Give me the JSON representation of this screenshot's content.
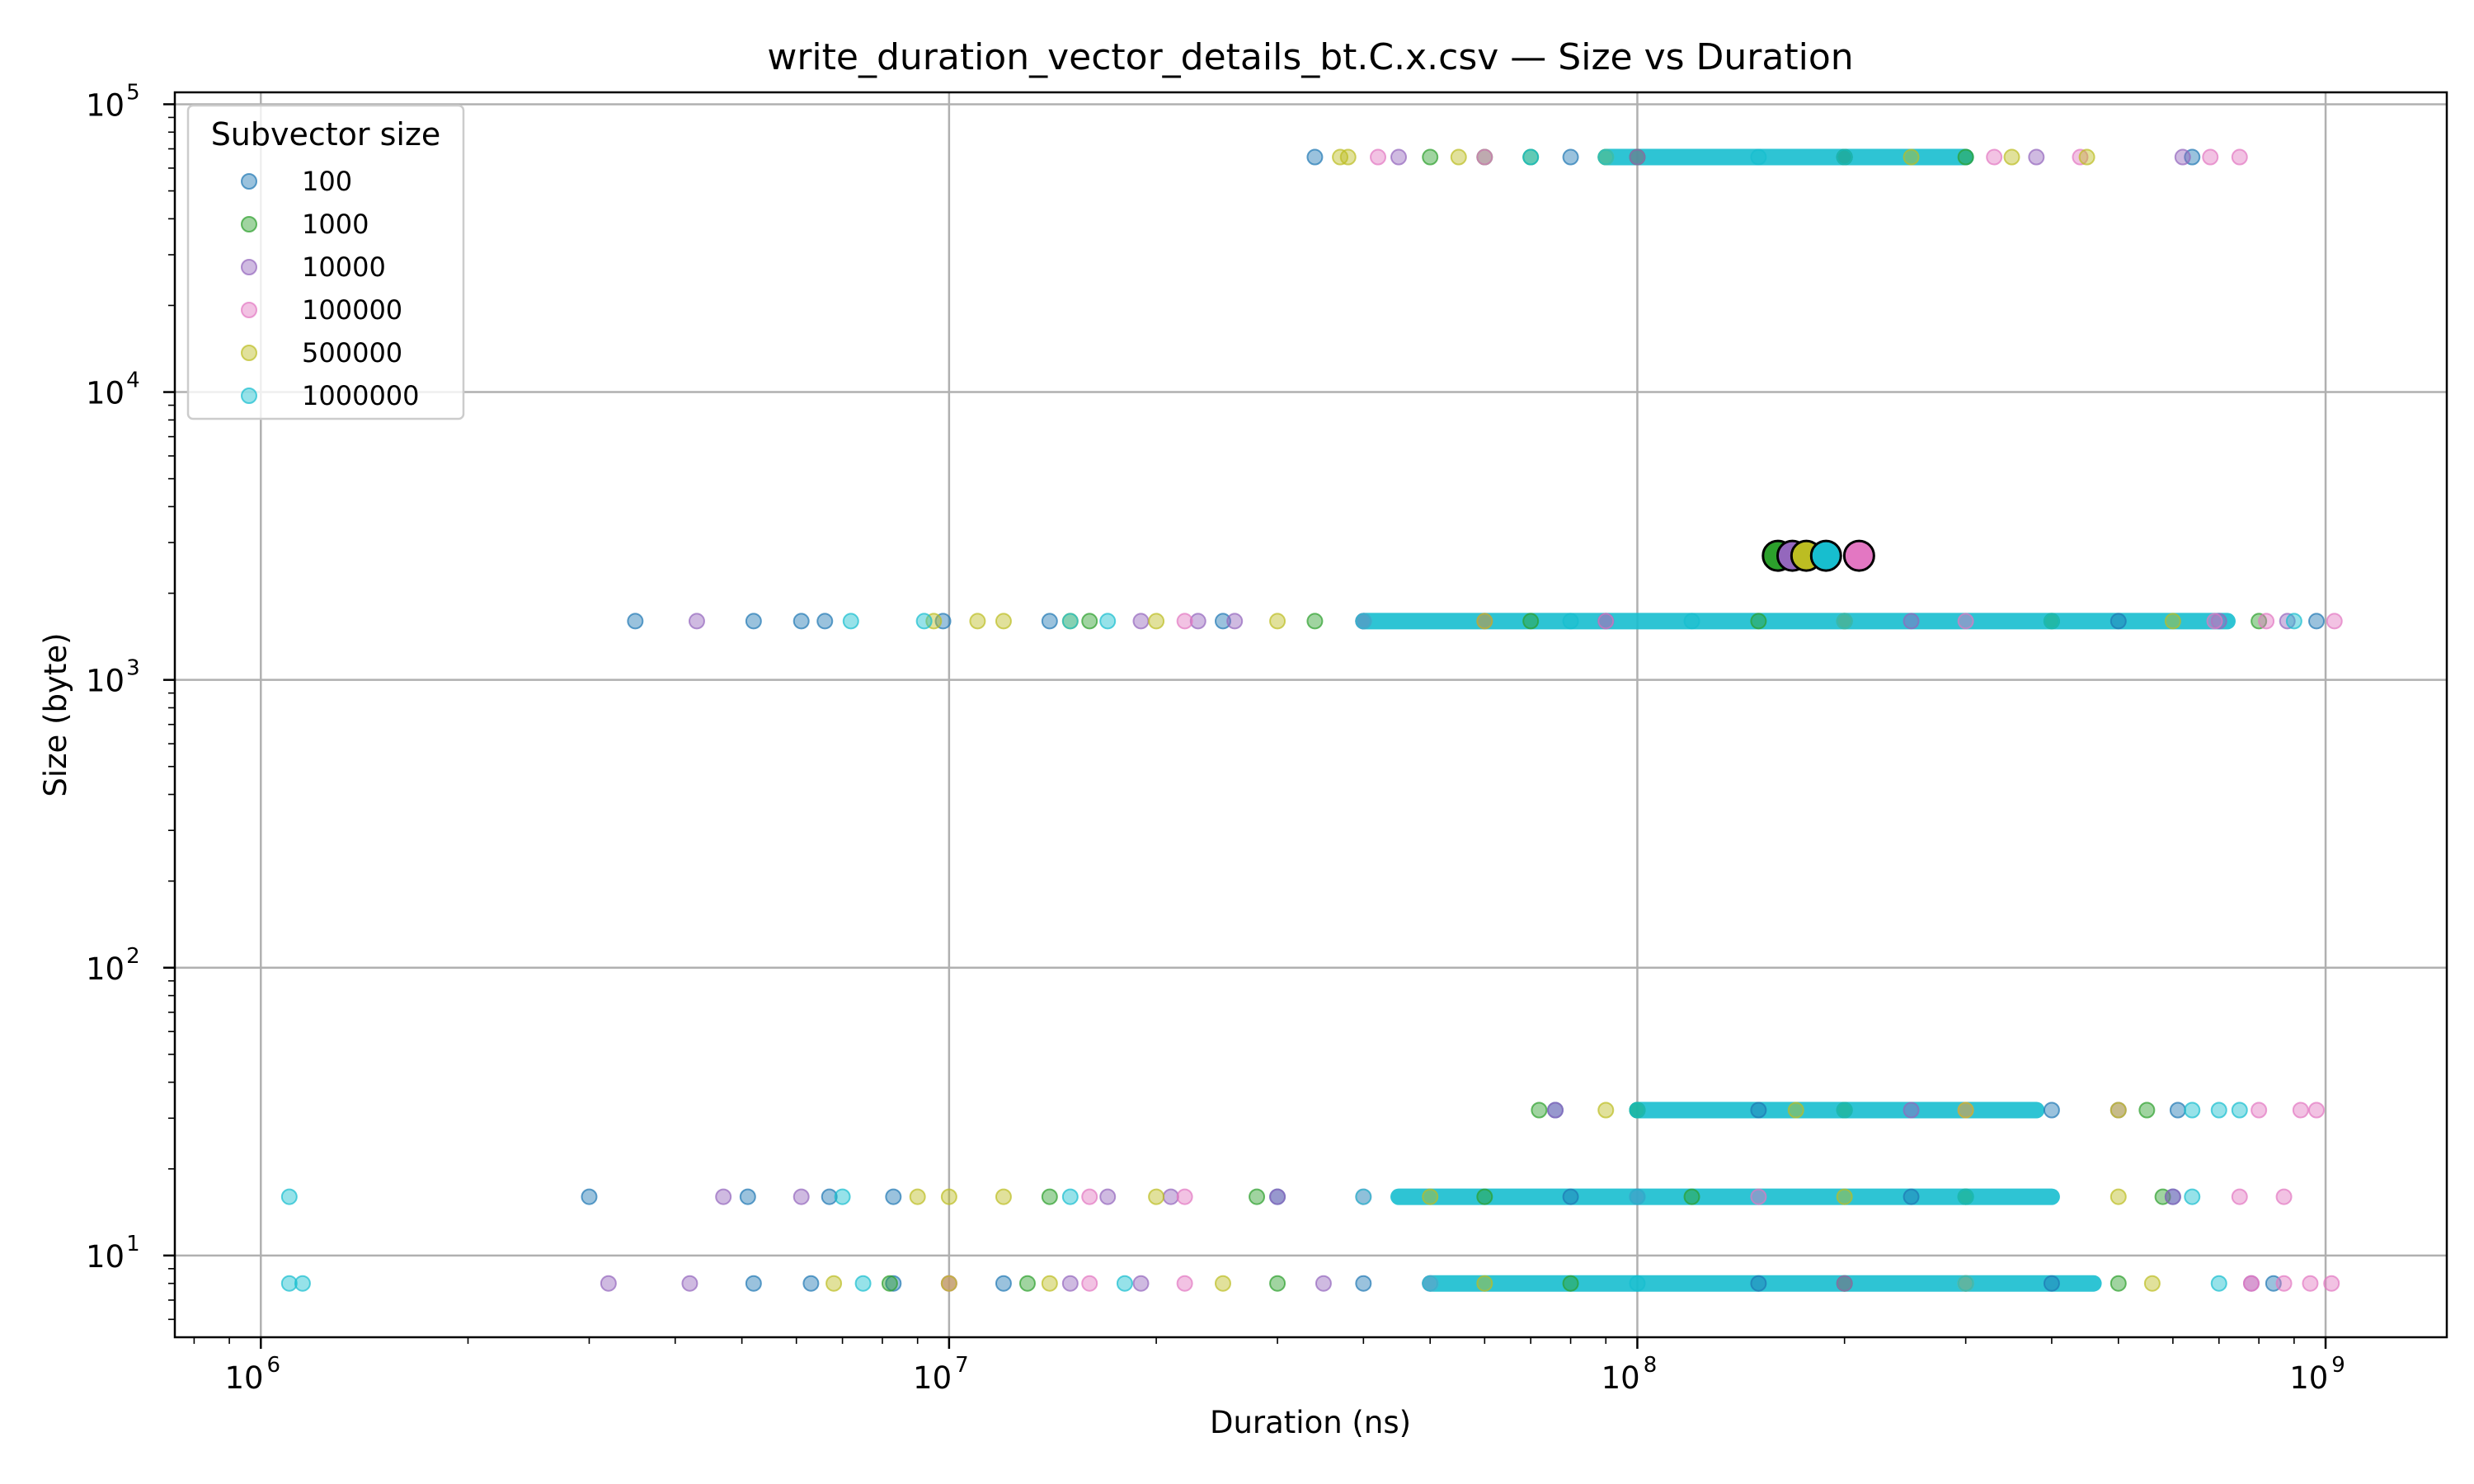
{
  "chart_data": {
    "type": "scatter",
    "title": "write_duration_vector_details_bt.C.x.csv — Size vs Duration",
    "xlabel": "Duration (ns)",
    "ylabel": "Size (byte)",
    "xscale": "log",
    "yscale": "log",
    "xlim": [
      750000,
      1500000000
    ],
    "ylim": [
      5.2,
      110000
    ],
    "grid": true,
    "x_ticks": [
      {
        "value": 1000000,
        "base": "10",
        "exp": "6"
      },
      {
        "value": 10000000,
        "base": "10",
        "exp": "7"
      },
      {
        "value": 100000000,
        "base": "10",
        "exp": "8"
      },
      {
        "value": 1000000000,
        "base": "10",
        "exp": "9"
      }
    ],
    "y_ticks": [
      {
        "value": 10,
        "base": "10",
        "exp": "1"
      },
      {
        "value": 100,
        "base": "10",
        "exp": "2"
      },
      {
        "value": 1000,
        "base": "10",
        "exp": "3"
      },
      {
        "value": 10000,
        "base": "10",
        "exp": "4"
      },
      {
        "value": 100000,
        "base": "10",
        "exp": "5"
      }
    ],
    "legend": {
      "title": "Subvector size",
      "position": "top-left"
    },
    "series": [
      {
        "name": "100",
        "color": "#1f77b4",
        "points": [
          [
            3500000,
            1600
          ],
          [
            5200000,
            1600
          ],
          [
            6100000,
            1600
          ],
          [
            6600000,
            1600
          ],
          [
            9800000,
            1600
          ],
          [
            14000000,
            1600
          ],
          [
            25000000,
            1600
          ],
          [
            40000000,
            1600
          ],
          [
            90000000,
            1600
          ],
          [
            200000000,
            1600
          ],
          [
            500000000,
            1600
          ],
          [
            970000000,
            1600
          ],
          [
            3000000,
            16
          ],
          [
            5100000,
            16
          ],
          [
            6700000,
            16
          ],
          [
            8300000,
            16
          ],
          [
            30000000,
            16
          ],
          [
            80000000,
            16
          ],
          [
            250000000,
            16
          ],
          [
            600000000,
            16
          ],
          [
            5200000,
            8
          ],
          [
            6300000,
            8
          ],
          [
            8300000,
            8
          ],
          [
            12000000,
            8
          ],
          [
            40000000,
            8
          ],
          [
            150000000,
            8
          ],
          [
            400000000,
            8
          ],
          [
            840000000,
            8
          ],
          [
            34000000,
            65536
          ],
          [
            80000000,
            65536
          ],
          [
            200000000,
            65536
          ],
          [
            640000000,
            65536
          ],
          [
            76000000,
            32
          ],
          [
            150000000,
            32
          ],
          [
            400000000,
            32
          ],
          [
            610000000,
            32
          ]
        ]
      },
      {
        "name": "1000",
        "color": "#2ca02c",
        "points": [
          [
            16000000,
            1600
          ],
          [
            34000000,
            1600
          ],
          [
            70000000,
            1600
          ],
          [
            150000000,
            1600
          ],
          [
            400000000,
            1600
          ],
          [
            800000000,
            1600
          ],
          [
            14000000,
            16
          ],
          [
            28000000,
            16
          ],
          [
            60000000,
            16
          ],
          [
            120000000,
            16
          ],
          [
            300000000,
            16
          ],
          [
            580000000,
            16
          ],
          [
            8200000,
            8
          ],
          [
            13000000,
            8
          ],
          [
            30000000,
            8
          ],
          [
            80000000,
            8
          ],
          [
            200000000,
            8
          ],
          [
            500000000,
            8
          ],
          [
            50000000,
            65536
          ],
          [
            60000000,
            65536
          ],
          [
            70000000,
            65536
          ],
          [
            100000000,
            65536
          ],
          [
            200000000,
            65536
          ],
          [
            300000000,
            65536
          ],
          [
            72000000,
            32
          ],
          [
            100000000,
            32
          ],
          [
            200000000,
            32
          ],
          [
            550000000,
            32
          ]
        ]
      },
      {
        "name": "10000",
        "color": "#9467bd",
        "points": [
          [
            4300000,
            1600
          ],
          [
            19000000,
            1600
          ],
          [
            23000000,
            1600
          ],
          [
            26000000,
            1600
          ],
          [
            60000000,
            1600
          ],
          [
            250000000,
            1600
          ],
          [
            700000000,
            1600
          ],
          [
            880000000,
            1600
          ],
          [
            4700000,
            16
          ],
          [
            6100000,
            16
          ],
          [
            17000000,
            16
          ],
          [
            21000000,
            16
          ],
          [
            30000000,
            16
          ],
          [
            100000000,
            16
          ],
          [
            600000000,
            16
          ],
          [
            3200000,
            8
          ],
          [
            4200000,
            8
          ],
          [
            10000000,
            8
          ],
          [
            15000000,
            8
          ],
          [
            19000000,
            8
          ],
          [
            35000000,
            8
          ],
          [
            200000000,
            8
          ],
          [
            780000000,
            8
          ],
          [
            45000000,
            65536
          ],
          [
            100000000,
            65536
          ],
          [
            380000000,
            65536
          ],
          [
            620000000,
            65536
          ],
          [
            76000000,
            32
          ],
          [
            250000000,
            32
          ],
          [
            500000000,
            32
          ]
        ]
      },
      {
        "name": "100000",
        "color": "#e377c2",
        "points": [
          [
            22000000,
            1600
          ],
          [
            40000000,
            1600
          ],
          [
            90000000,
            1600
          ],
          [
            300000000,
            1600
          ],
          [
            690000000,
            1600
          ],
          [
            820000000,
            1600
          ],
          [
            1030000000,
            1600
          ],
          [
            16000000,
            16
          ],
          [
            22000000,
            16
          ],
          [
            40000000,
            16
          ],
          [
            150000000,
            16
          ],
          [
            750000000,
            16
          ],
          [
            870000000,
            16
          ],
          [
            10000000,
            8
          ],
          [
            16000000,
            8
          ],
          [
            22000000,
            8
          ],
          [
            50000000,
            8
          ],
          [
            300000000,
            8
          ],
          [
            780000000,
            8
          ],
          [
            870000000,
            8
          ],
          [
            950000000,
            8
          ],
          [
            1020000000,
            8
          ],
          [
            42000000,
            65536
          ],
          [
            60000000,
            65536
          ],
          [
            330000000,
            65536
          ],
          [
            440000000,
            65536
          ],
          [
            680000000,
            65536
          ],
          [
            750000000,
            65536
          ],
          [
            300000000,
            32
          ],
          [
            800000000,
            32
          ],
          [
            920000000,
            32
          ],
          [
            970000000,
            32
          ]
        ]
      },
      {
        "name": "500000",
        "color": "#bcbd22",
        "points": [
          [
            9500000,
            1600
          ],
          [
            11000000,
            1600
          ],
          [
            12000000,
            1600
          ],
          [
            15000000,
            1600
          ],
          [
            20000000,
            1600
          ],
          [
            30000000,
            1600
          ],
          [
            60000000,
            1600
          ],
          [
            200000000,
            1600
          ],
          [
            600000000,
            1600
          ],
          [
            9000000,
            16
          ],
          [
            10000000,
            16
          ],
          [
            12000000,
            16
          ],
          [
            20000000,
            16
          ],
          [
            50000000,
            16
          ],
          [
            200000000,
            16
          ],
          [
            500000000,
            16
          ],
          [
            6800000,
            8
          ],
          [
            10000000,
            8
          ],
          [
            14000000,
            8
          ],
          [
            25000000,
            8
          ],
          [
            60000000,
            8
          ],
          [
            300000000,
            8
          ],
          [
            560000000,
            8
          ],
          [
            37000000,
            65536
          ],
          [
            38000000,
            65536
          ],
          [
            55000000,
            65536
          ],
          [
            90000000,
            65536
          ],
          [
            250000000,
            65536
          ],
          [
            350000000,
            65536
          ],
          [
            450000000,
            65536
          ],
          [
            90000000,
            32
          ],
          [
            170000000,
            32
          ],
          [
            300000000,
            32
          ],
          [
            500000000,
            32
          ]
        ]
      },
      {
        "name": "1000000",
        "color": "#17becf",
        "points": [
          [
            7200000,
            1600
          ],
          [
            9200000,
            1600
          ],
          [
            15000000,
            1600
          ],
          [
            17000000,
            1600
          ],
          [
            40000000,
            1600
          ],
          [
            80000000,
            1600
          ],
          [
            120000000,
            1600
          ],
          [
            200000000,
            1600
          ],
          [
            400000000,
            1600
          ],
          [
            900000000,
            1600
          ],
          [
            1100000,
            16
          ],
          [
            7000000,
            16
          ],
          [
            15000000,
            16
          ],
          [
            40000000,
            16
          ],
          [
            100000000,
            16
          ],
          [
            300000000,
            16
          ],
          [
            640000000,
            16
          ],
          [
            1100000,
            8
          ],
          [
            1150000,
            8
          ],
          [
            7500000,
            8
          ],
          [
            18000000,
            8
          ],
          [
            50000000,
            8
          ],
          [
            100000000,
            8
          ],
          [
            300000000,
            8
          ],
          [
            700000000,
            8
          ],
          [
            70000000,
            65536
          ],
          [
            90000000,
            65536
          ],
          [
            150000000,
            65536
          ],
          [
            200000000,
            65536
          ],
          [
            100000000,
            32
          ],
          [
            200000000,
            32
          ],
          [
            640000000,
            32
          ],
          [
            700000000,
            32
          ],
          [
            750000000,
            32
          ]
        ]
      }
    ],
    "bands": [
      {
        "y": 65536,
        "x_from": 90000000,
        "x_to": 300000000,
        "color": "#17becf"
      },
      {
        "y": 1600,
        "x_from": 40000000,
        "x_to": 720000000,
        "color": "#17becf"
      },
      {
        "y": 32,
        "x_from": 100000000,
        "x_to": 380000000,
        "color": "#17becf"
      },
      {
        "y": 16,
        "x_from": 45000000,
        "x_to": 400000000,
        "color": "#17becf"
      },
      {
        "y": 8,
        "x_from": 50000000,
        "x_to": 460000000,
        "color": "#17becf"
      }
    ],
    "means": [
      {
        "series": "1000",
        "x": 160000000,
        "y": 2700,
        "color": "#2ca02c"
      },
      {
        "series": "10000",
        "x": 168000000,
        "y": 2700,
        "color": "#9467bd"
      },
      {
        "series": "500000",
        "x": 176000000,
        "y": 2700,
        "color": "#bcbd22"
      },
      {
        "series": "1000000",
        "x": 188000000,
        "y": 2700,
        "color": "#17becf"
      },
      {
        "series": "100000",
        "x": 210000000,
        "y": 2700,
        "color": "#e377c2"
      }
    ]
  }
}
